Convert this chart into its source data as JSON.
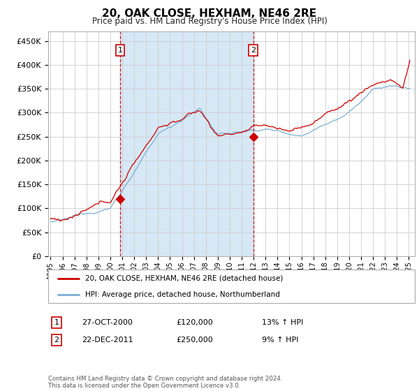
{
  "title": "20, OAK CLOSE, HEXHAM, NE46 2RE",
  "subtitle": "Price paid vs. HM Land Registry's House Price Index (HPI)",
  "ylabel_ticks": [
    "£0",
    "£50K",
    "£100K",
    "£150K",
    "£200K",
    "£250K",
    "£300K",
    "£350K",
    "£400K",
    "£450K"
  ],
  "ytick_values": [
    0,
    50000,
    100000,
    150000,
    200000,
    250000,
    300000,
    350000,
    400000,
    450000
  ],
  "ylim": [
    0,
    470000
  ],
  "sale1": {
    "date_num": 2000.82,
    "price": 120000,
    "label": "1",
    "date_str": "27-OCT-2000",
    "hpi_pct": "13%"
  },
  "sale2": {
    "date_num": 2011.97,
    "price": 250000,
    "label": "2",
    "date_str": "22-DEC-2011",
    "hpi_pct": "9%"
  },
  "line_color_red": "#cc0000",
  "line_color_blue": "#7bafd4",
  "fill_color_blue": "#d6e8f5",
  "vline_color": "#cc0000",
  "background_color": "#ffffff",
  "grid_color": "#cccccc",
  "legend_label_red": "20, OAK CLOSE, HEXHAM, NE46 2RE (detached house)",
  "legend_label_blue": "HPI: Average price, detached house, Northumberland",
  "footer": "Contains HM Land Registry data © Crown copyright and database right 2024.\nThis data is licensed under the Open Government Licence v3.0.",
  "xlim_start": 1994.8,
  "xlim_end": 2025.5,
  "xtick_years": [
    1995,
    1996,
    1997,
    1998,
    1999,
    2000,
    2001,
    2002,
    2003,
    2004,
    2005,
    2006,
    2007,
    2008,
    2009,
    2010,
    2011,
    2012,
    2013,
    2014,
    2015,
    2016,
    2017,
    2018,
    2019,
    2020,
    2021,
    2022,
    2023,
    2024,
    2025
  ]
}
